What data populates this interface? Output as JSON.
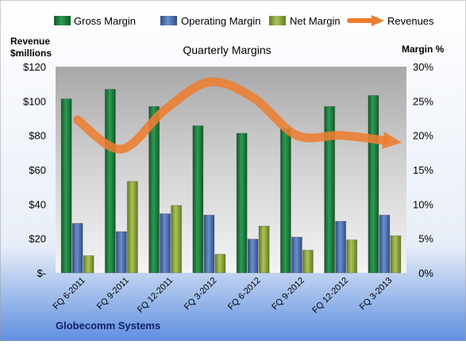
{
  "chart_data": {
    "type": "bar",
    "title": "Quarterly Margins",
    "company": "Globecomm Systems",
    "left_axis": {
      "label_line1": "Revenue",
      "label_line2": "$millions",
      "ticks": [
        "$-",
        "$20",
        "$40",
        "$60",
        "$80",
        "$100",
        "$120"
      ],
      "range": [
        0,
        120
      ]
    },
    "right_axis": {
      "label": "Margin %",
      "ticks": [
        "0%",
        "5%",
        "10%",
        "15%",
        "20%",
        "25%",
        "30%"
      ],
      "range": [
        0,
        30
      ]
    },
    "categories": [
      "FQ 6-2011",
      "FQ 9-2011",
      "FQ 12-2011",
      "FQ 3-2012",
      "FQ 6-2012",
      "FQ 9-2012",
      "FQ 12-2012",
      "FQ 3-2013"
    ],
    "series": [
      {
        "name": "Gross Margin",
        "axis": "right",
        "color": "#1e7a3c",
        "values": [
          25.3,
          26.7,
          24.2,
          21.4,
          20.3,
          21.0,
          24.2,
          25.8
        ]
      },
      {
        "name": "Operating Margin",
        "axis": "right",
        "color": "#4a6fad",
        "values": [
          7.2,
          6.0,
          8.6,
          8.4,
          4.9,
          5.2,
          7.5,
          8.4
        ]
      },
      {
        "name": "Net Margin",
        "axis": "right",
        "color": "#8faa3e",
        "values": [
          2.5,
          13.3,
          9.8,
          2.7,
          6.8,
          3.3,
          4.8,
          5.4
        ]
      },
      {
        "name": "Revenues",
        "axis": "left",
        "color": "#ed7d31",
        "values": [
          89,
          72,
          95,
          111,
          102,
          80,
          80,
          77
        ]
      }
    ],
    "legend": {
      "position": "top"
    },
    "grid": false
  }
}
